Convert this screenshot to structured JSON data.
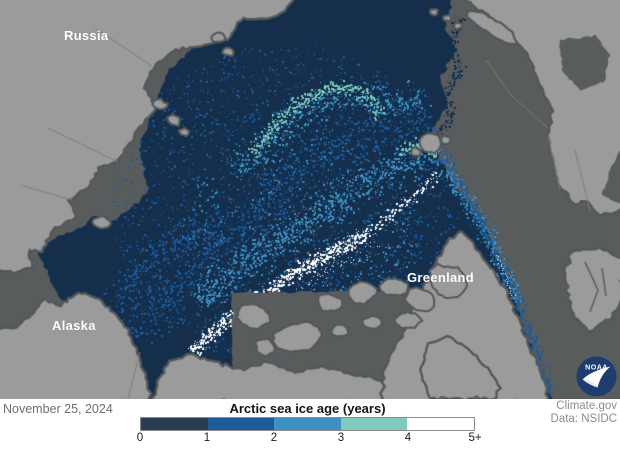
{
  "map": {
    "labels": {
      "russia": "Russia",
      "alaska": "Alaska",
      "greenland": "Greenland"
    },
    "logo_text": "NOAA",
    "colors": {
      "land": "#9b9b9b",
      "ocean": "#585c5d",
      "coast_halo": "#54585a",
      "border_line": "#7e7e7e",
      "ice_age_0_1": "#142e4c",
      "ice_age_1_2": "#1d5a9b",
      "ice_age_2_3": "#3e92c3",
      "ice_age_3_4": "#7fccbd",
      "ice_age_4_plus": "#ffffff",
      "logo_blue": "#1d3d6e"
    }
  },
  "footer": {
    "date": "November 25, 2024",
    "credit_line1": "Climate.gov",
    "credit_line2": "Data: NSIDC"
  },
  "chart_data": {
    "type": "heatmap",
    "title": "Arctic sea ice age (years)",
    "subtitle": "",
    "legend": {
      "position": "bottom-center",
      "tick_labels": [
        "0",
        "1",
        "2",
        "3",
        "4",
        "5+"
      ],
      "bins": [
        {
          "range": "0-1",
          "color": "#2a3c52"
        },
        {
          "range": "1-2",
          "color": "#1d5a9b"
        },
        {
          "range": "2-3",
          "color": "#3e92c3"
        },
        {
          "range": "3-4",
          "color": "#7fccbd"
        },
        {
          "range": "4-5+",
          "color": "#ffffff"
        }
      ]
    },
    "map_regions": [
      {
        "label": "Russia"
      },
      {
        "label": "Alaska"
      },
      {
        "label": "Greenland"
      }
    ]
  }
}
